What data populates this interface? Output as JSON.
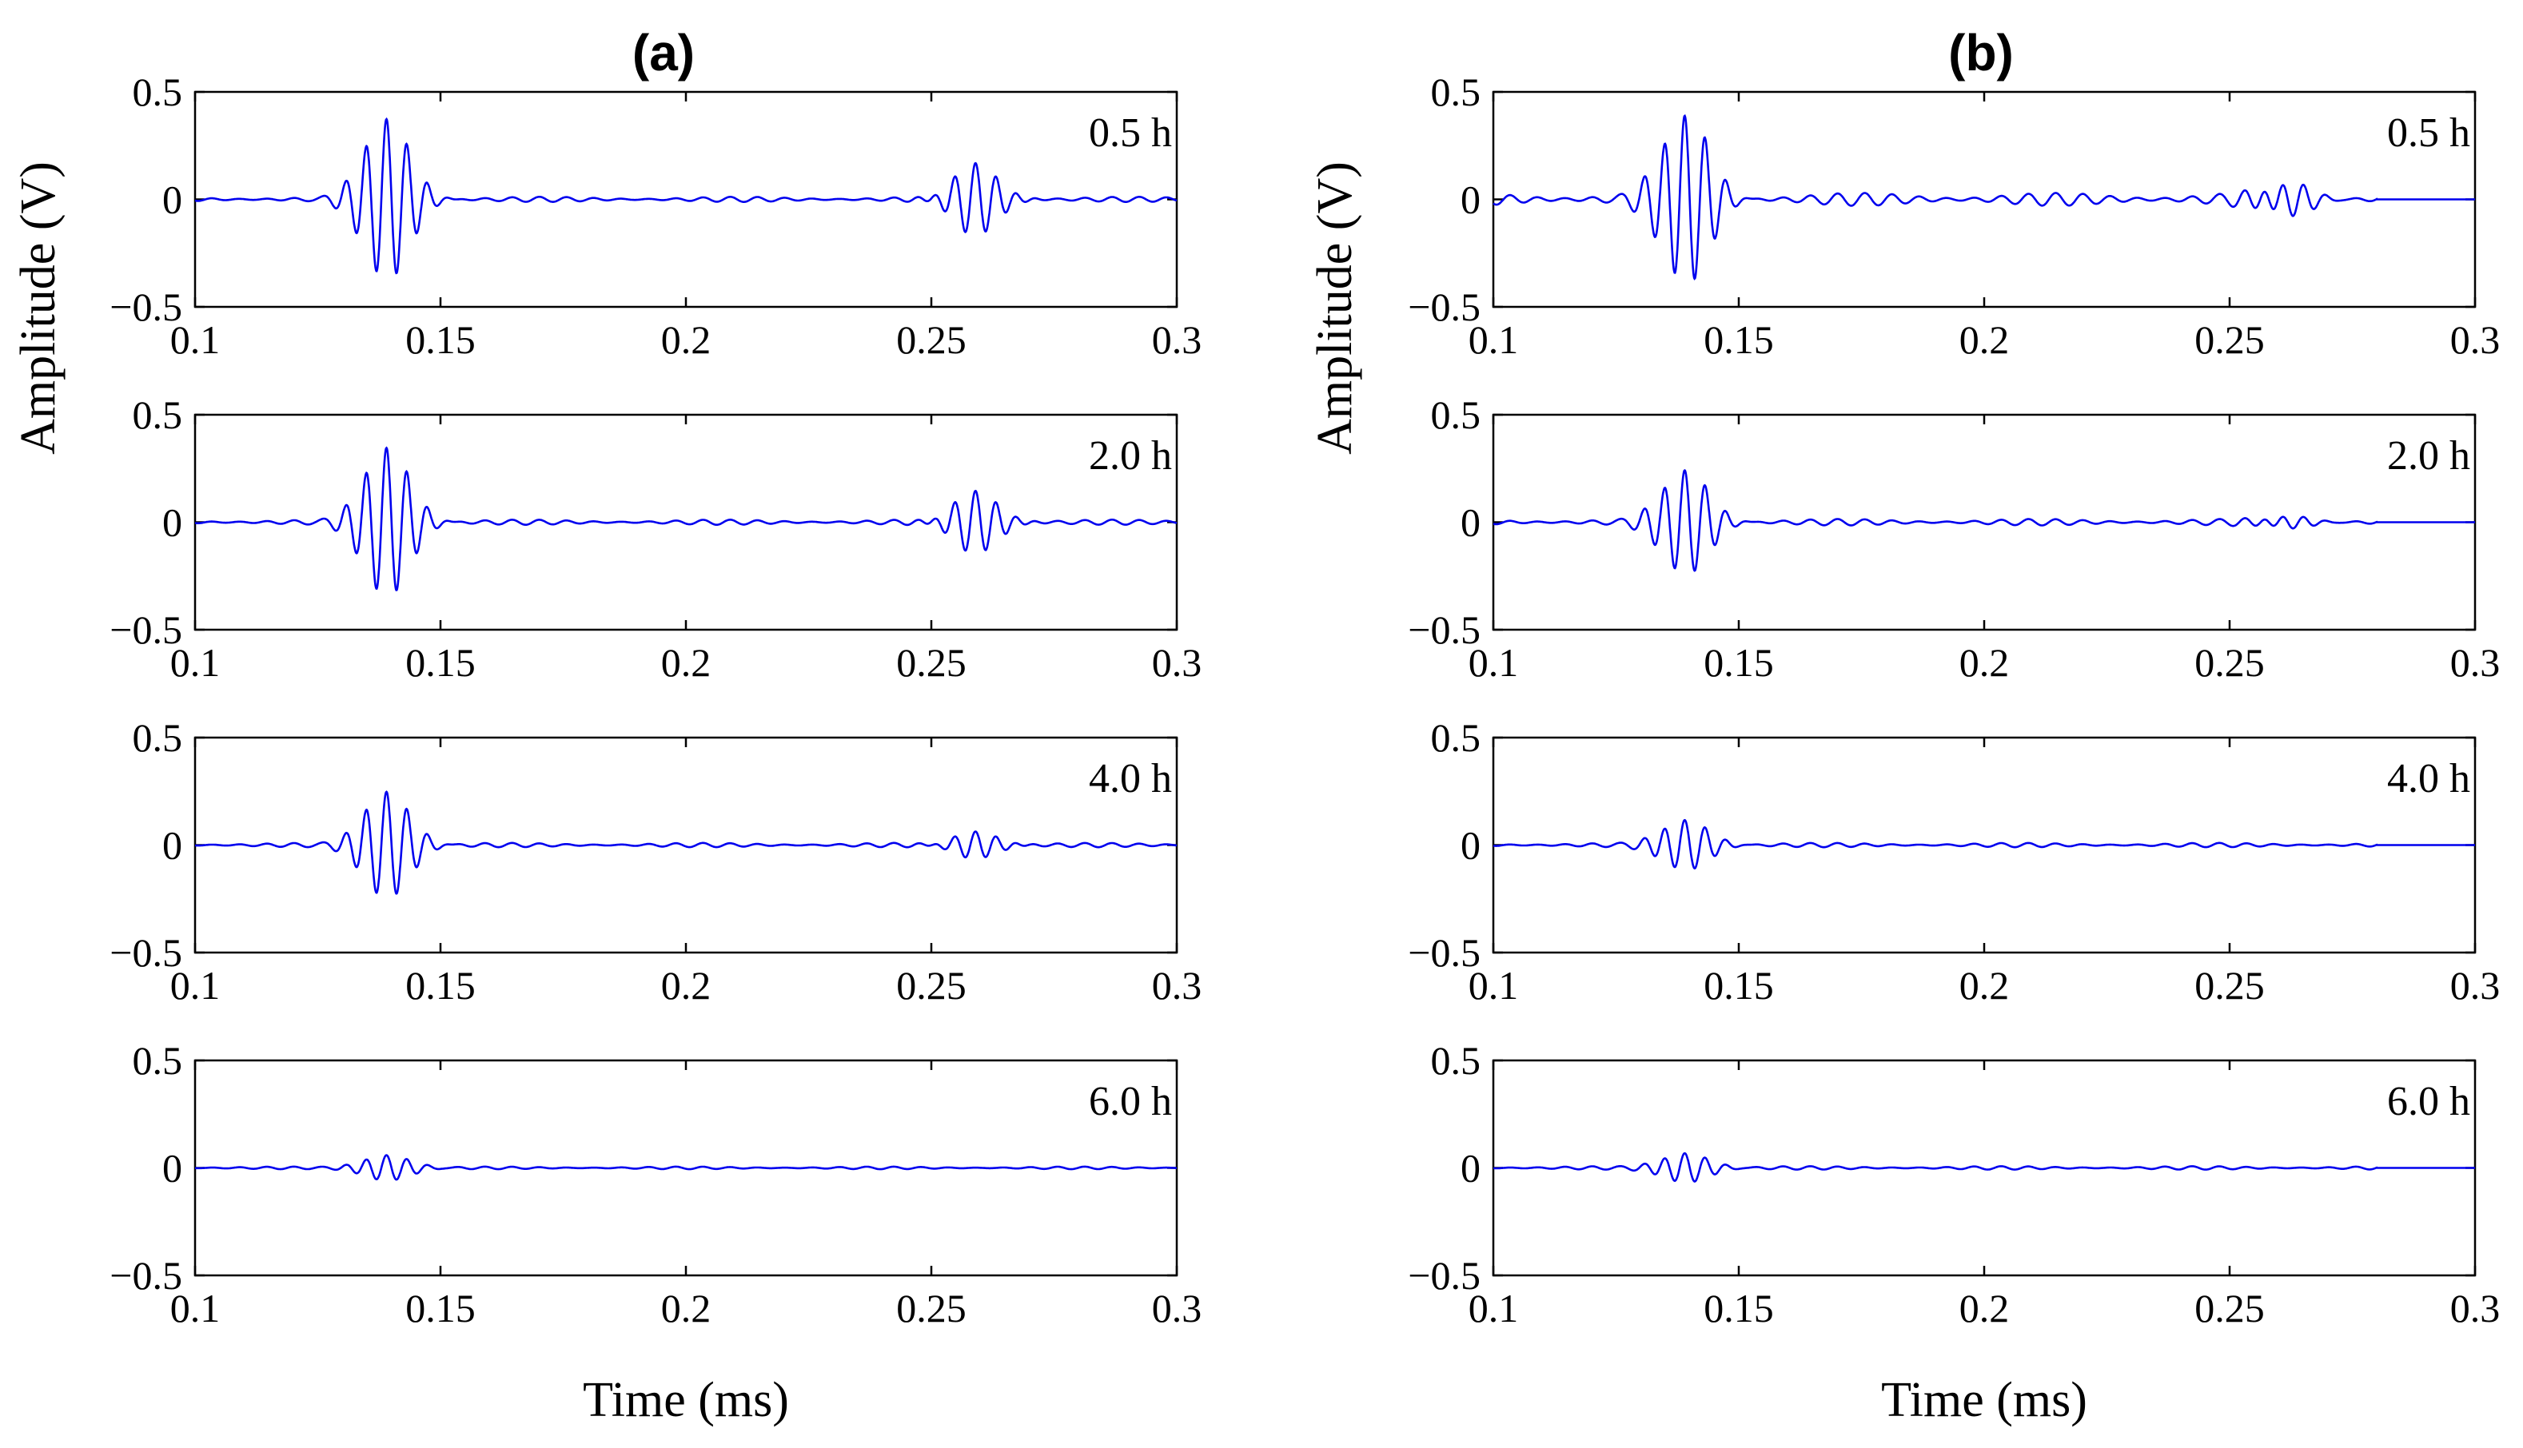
{
  "colors": {
    "signal": "#0000ee",
    "axis": "#000000",
    "background": "#ffffff"
  },
  "chart_data": [
    {
      "type": "line",
      "title": "(a)",
      "ylabel": "Amplitude (V)",
      "xlabel": "Time (ms)",
      "xlim": [
        0.1,
        0.3
      ],
      "ylim": [
        -0.5,
        0.5
      ],
      "x_ticks": [
        0.1,
        0.15,
        0.2,
        0.25,
        0.3
      ],
      "x_tick_labels": [
        "0.1",
        "0.15",
        "0.2",
        "0.25",
        "0.3"
      ],
      "y_ticks": [
        -0.5,
        0,
        0.5
      ],
      "y_tick_labels": [
        "−0.5",
        "0",
        "0.5"
      ],
      "grid": false,
      "series": [
        {
          "name": "0.5 h",
          "label": "0.5 h",
          "first_packet": {
            "center_ms": 0.139,
            "peak_amplitude_v": 0.38
          },
          "second_packet": {
            "center_ms": 0.259,
            "peak_amplitude_v": 0.16
          },
          "noise_amplitude_v": 0.012
        },
        {
          "name": "2.0 h",
          "label": "2.0 h",
          "first_packet": {
            "center_ms": 0.139,
            "peak_amplitude_v": 0.35
          },
          "second_packet": {
            "center_ms": 0.259,
            "peak_amplitude_v": 0.14
          },
          "noise_amplitude_v": 0.012
        },
        {
          "name": "4.0 h",
          "label": "4.0 h",
          "first_packet": {
            "center_ms": 0.139,
            "peak_amplitude_v": 0.25
          },
          "second_packet": {
            "center_ms": 0.259,
            "peak_amplitude_v": 0.06
          },
          "noise_amplitude_v": 0.01
        },
        {
          "name": "6.0 h",
          "label": "6.0 h",
          "first_packet": {
            "center_ms": 0.139,
            "peak_amplitude_v": 0.06
          },
          "second_packet": {
            "center_ms": 0.259,
            "peak_amplitude_v": 0.0
          },
          "noise_amplitude_v": 0.006
        }
      ]
    },
    {
      "type": "line",
      "title": "(b)",
      "ylabel": "Amplitude (V)",
      "xlabel": "Time (ms)",
      "xlim": [
        0.1,
        0.3
      ],
      "ylim": [
        -0.5,
        0.5
      ],
      "x_ticks": [
        0.1,
        0.15,
        0.2,
        0.25,
        0.3
      ],
      "x_tick_labels": [
        "0.1",
        "0.15",
        "0.2",
        "0.25",
        "0.3"
      ],
      "y_ticks": [
        -0.5,
        0,
        0.5
      ],
      "y_tick_labels": [
        "−0.5",
        "0",
        "0.5"
      ],
      "grid": false,
      "series": [
        {
          "name": "0.5 h",
          "label": "0.5 h",
          "first_packet": {
            "center_ms": 0.139,
            "peak_amplitude_v": 0.41
          },
          "second_packet": {
            "center_ms": 0.261,
            "peak_amplitude_v": 0.08
          },
          "noise_amplitude_v": 0.03
        },
        {
          "name": "2.0 h",
          "label": "2.0 h",
          "first_packet": {
            "center_ms": 0.139,
            "peak_amplitude_v": 0.25
          },
          "second_packet": {
            "center_ms": 0.261,
            "peak_amplitude_v": 0.03
          },
          "noise_amplitude_v": 0.015
        },
        {
          "name": "4.0 h",
          "label": "4.0 h",
          "first_packet": {
            "center_ms": 0.139,
            "peak_amplitude_v": 0.12
          },
          "second_packet": {
            "center_ms": 0.261,
            "peak_amplitude_v": 0.0
          },
          "noise_amplitude_v": 0.01
        },
        {
          "name": "6.0 h",
          "label": "6.0 h",
          "first_packet": {
            "center_ms": 0.139,
            "peak_amplitude_v": 0.07
          },
          "second_packet": {
            "center_ms": 0.261,
            "peak_amplitude_v": 0.0
          },
          "noise_amplitude_v": 0.008
        }
      ]
    }
  ]
}
